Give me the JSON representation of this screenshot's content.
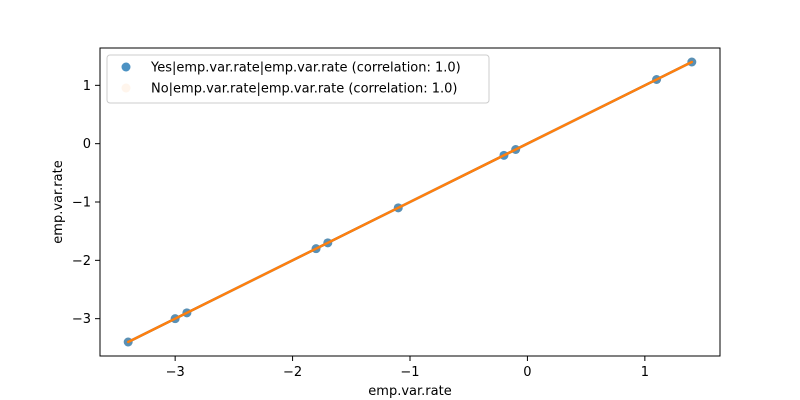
{
  "chart_data": {
    "type": "scatter",
    "title": "",
    "xlabel": "emp.var.rate",
    "ylabel": "emp.var.rate",
    "xlim": [
      -3.64,
      1.64
    ],
    "ylim": [
      -3.64,
      1.64
    ],
    "xticks": [
      -3,
      -2,
      -1,
      0,
      1
    ],
    "yticks": [
      -3,
      -2,
      -1,
      0,
      1
    ],
    "grid": false,
    "legend_position": "upper-left",
    "series": [
      {
        "name": "Yes|emp.var.rate|emp.var.rate (correlation: 1.0)",
        "color": "#1f77b4",
        "marker_alpha": 0.8,
        "x": [
          -3.4,
          -3.0,
          -2.9,
          -1.8,
          -1.7,
          -1.1,
          -0.2,
          -0.1,
          1.1,
          1.4
        ],
        "y": [
          -3.4,
          -3.0,
          -2.9,
          -1.8,
          -1.7,
          -1.1,
          -0.2,
          -0.1,
          1.1,
          1.4
        ],
        "fit_line": true
      },
      {
        "name": "No|emp.var.rate|emp.var.rate (correlation: 1.0)",
        "color": "#ff7f0e",
        "marker_alpha": 0.08,
        "x": [
          -3.4,
          -3.0,
          -2.9,
          -1.8,
          -1.7,
          -1.1,
          -0.1,
          1.1,
          1.4
        ],
        "y": [
          -3.4,
          -3.0,
          -2.9,
          -1.8,
          -1.7,
          -1.1,
          -0.1,
          1.1,
          1.4
        ],
        "fit_line": true
      }
    ]
  }
}
